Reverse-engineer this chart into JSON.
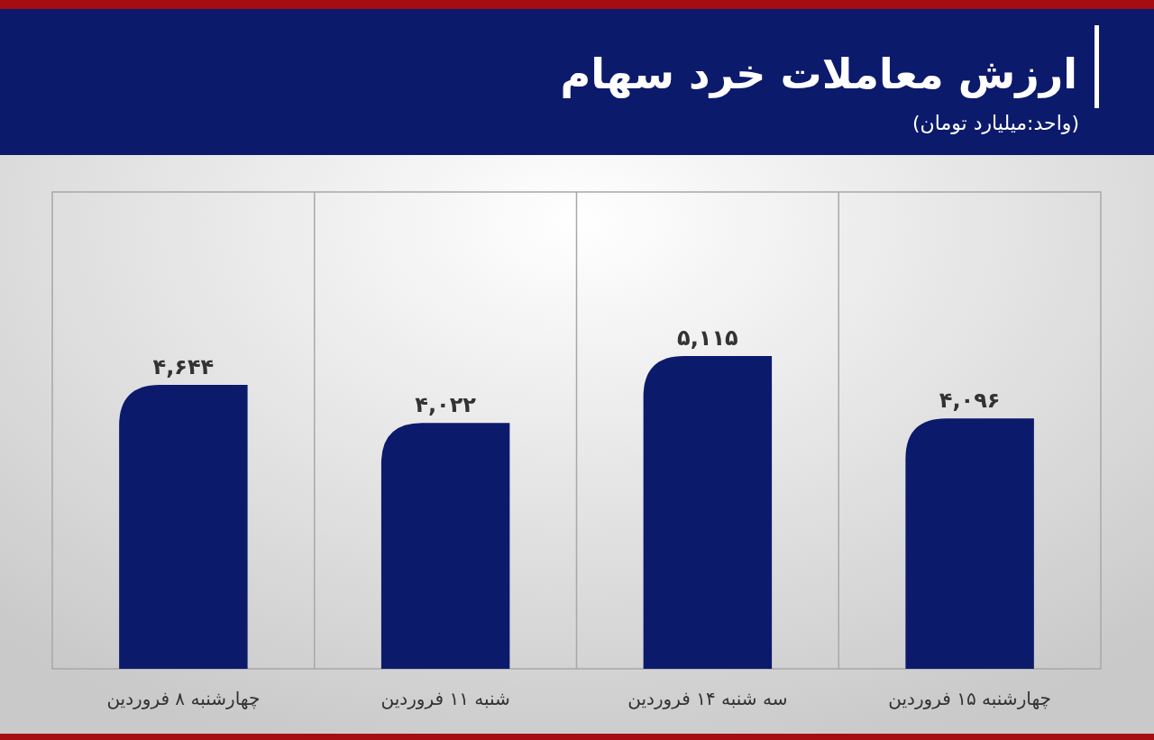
{
  "chart_data": {
    "type": "bar",
    "title": "ارزش معاملات خرد سهام",
    "subtitle": "(واحد:میلیارد تومان)",
    "categories": [
      "چهارشنبه ۸ فروردین",
      "شنبه ۱۱ فروردین",
      "سه شنبه ۱۴ فروردین",
      "چهارشنبه ۱۵ فروردین"
    ],
    "values": [
      4644,
      4022,
      5115,
      4096
    ],
    "value_labels": [
      "۴,۶۴۴",
      "۴,۰۲۲",
      "۵,۱۱۵",
      "۴,۰۹۶"
    ],
    "color": "#0c1a6b",
    "ylim": [
      0,
      7800
    ],
    "grid": "x",
    "tick_labels": "x"
  }
}
